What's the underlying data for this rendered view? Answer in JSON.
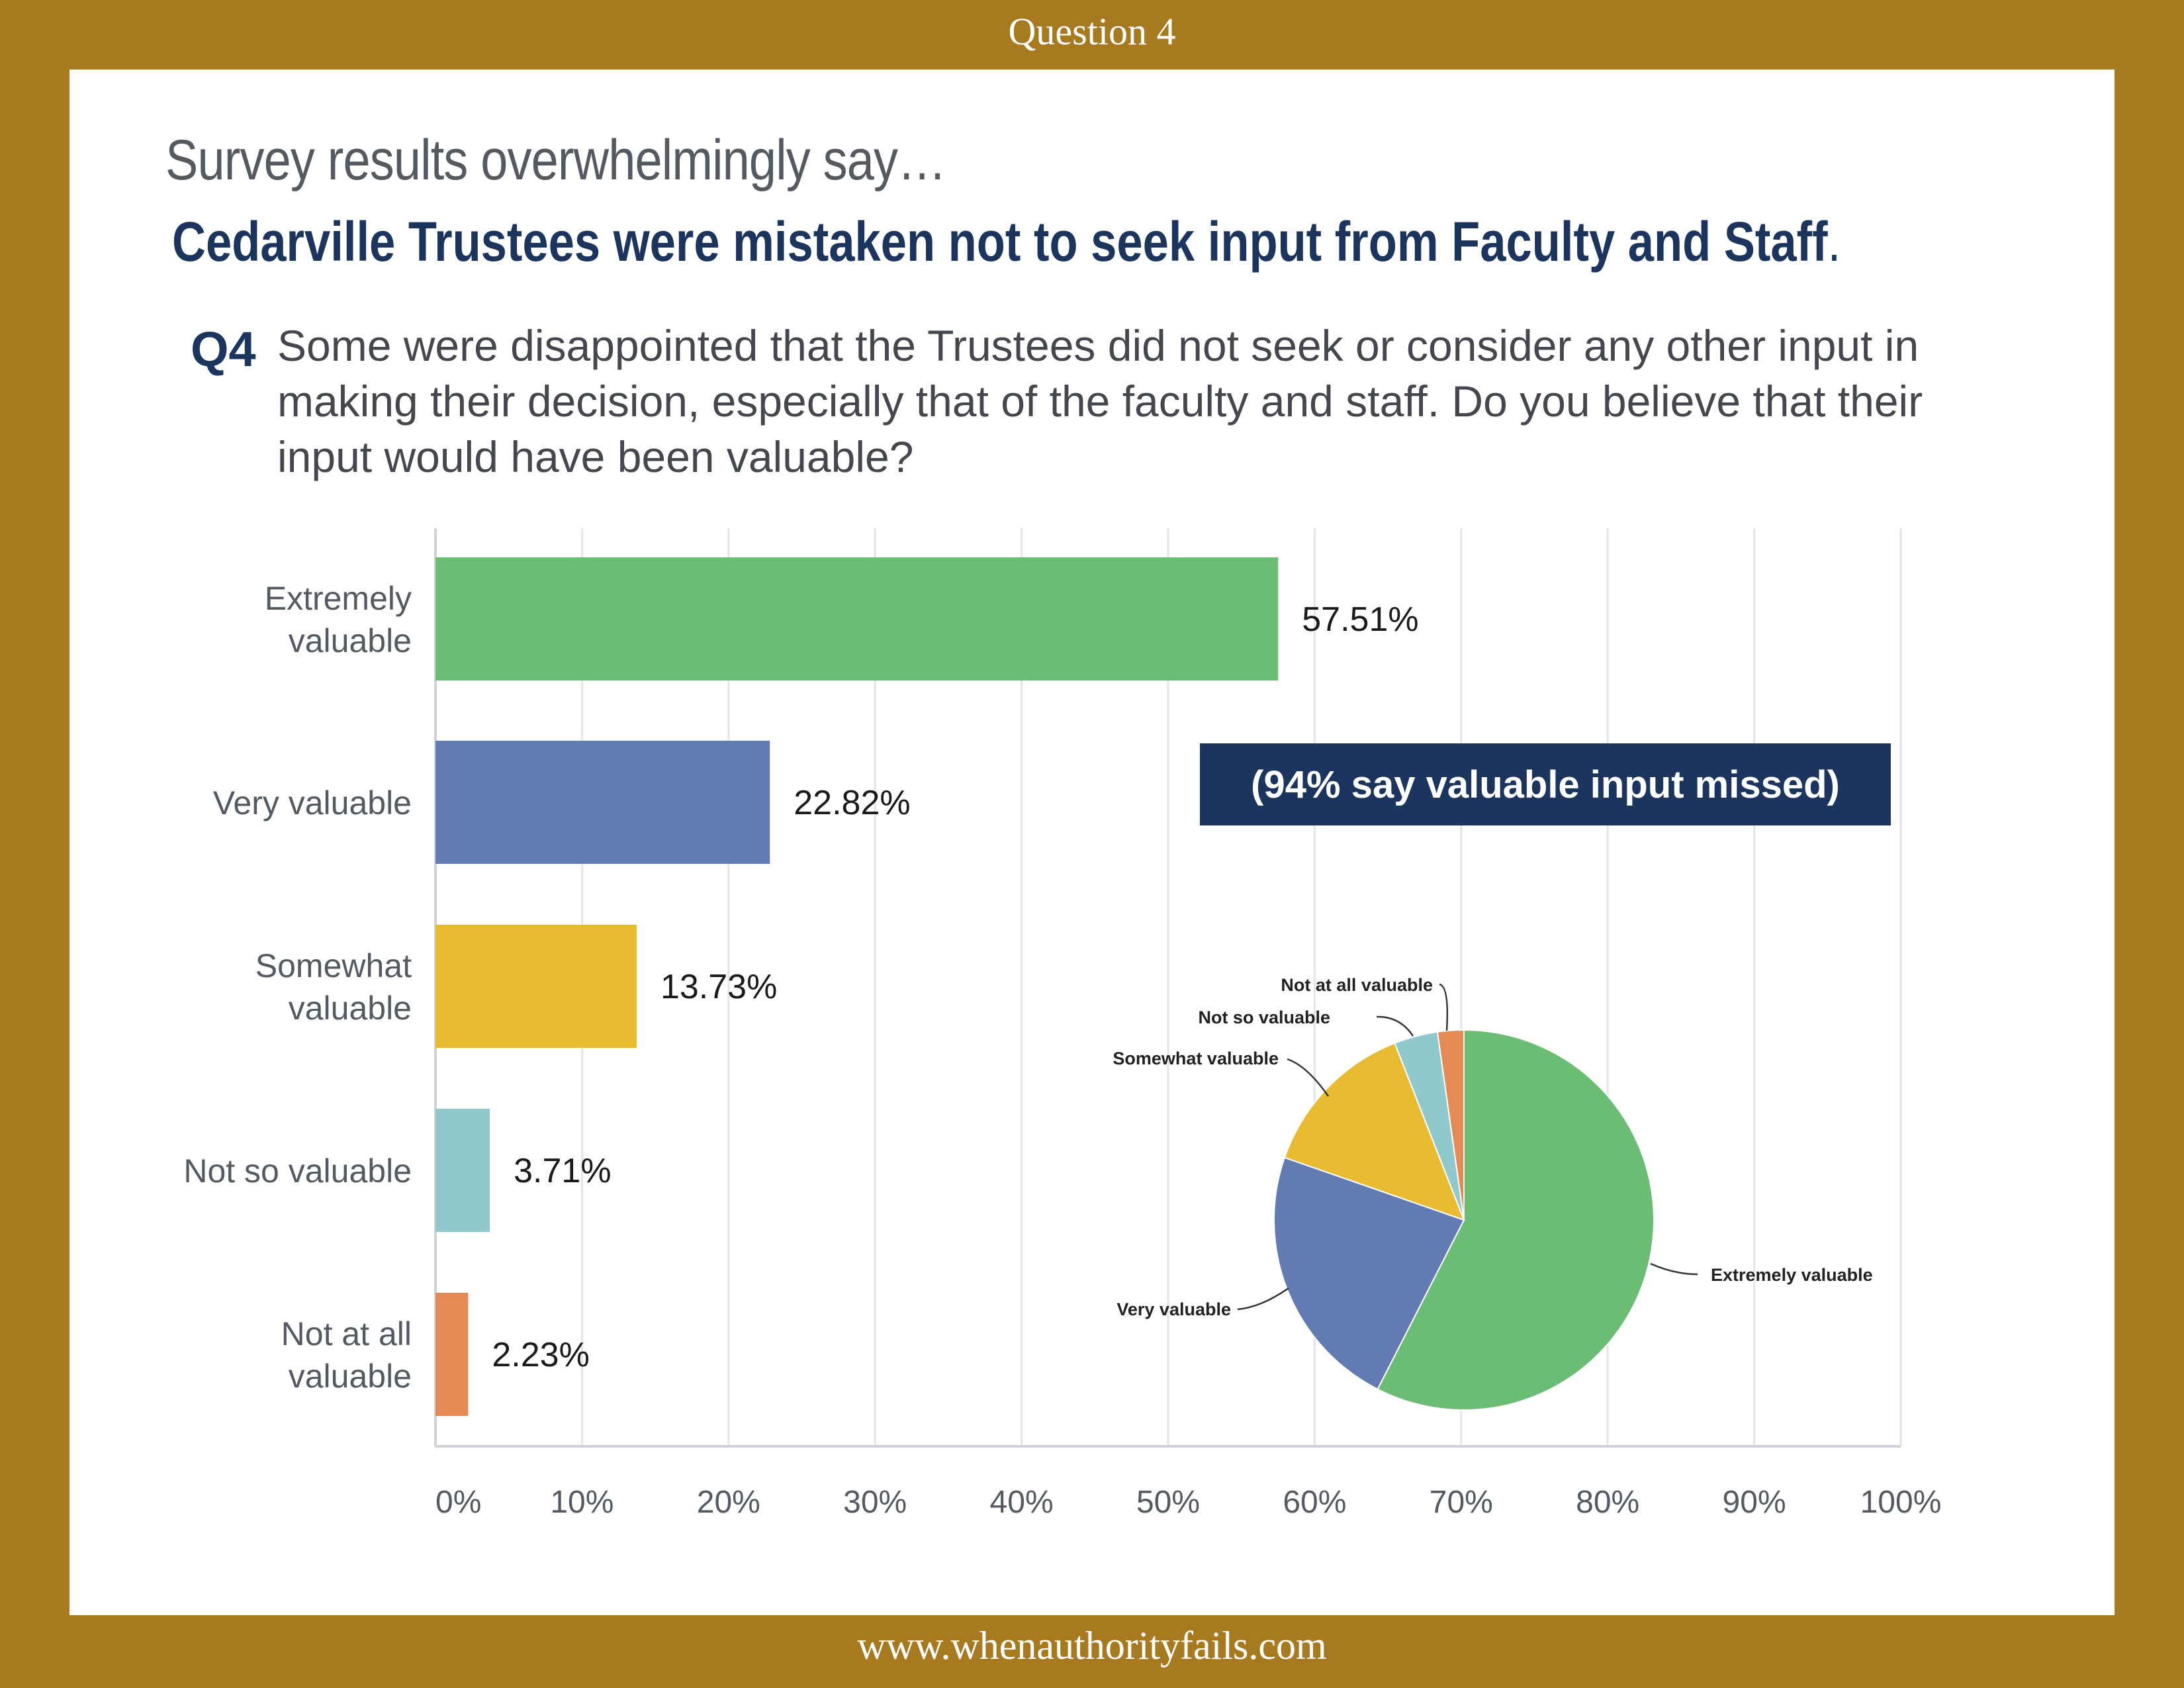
{
  "header": {
    "label": "Question 4"
  },
  "footer": {
    "url": "www.whenauthorityfails.com"
  },
  "intro": "Survey results overwhelmingly say…",
  "headline": {
    "text": "Cedarville Trustees were mistaken not to seek input from Faculty and Staff",
    "punct": "."
  },
  "question": {
    "number": "Q4",
    "text": "Some were disappointed that the Trustees did not seek or consider any other input in making their decision, especially that of the faculty and staff. Do you believe that their input would have been valuable?"
  },
  "callout": "(94% say valuable input missed)",
  "chart_data": [
    {
      "type": "bar",
      "orientation": "horizontal",
      "categories": [
        [
          "Extremely",
          "valuable"
        ],
        [
          "Very valuable"
        ],
        [
          "Somewhat",
          "valuable"
        ],
        [
          "Not so valuable"
        ],
        [
          "Not at all",
          "valuable"
        ]
      ],
      "values": [
        57.51,
        22.82,
        13.73,
        3.71,
        2.23
      ],
      "value_labels": [
        "57.51%",
        "22.82%",
        "13.73%",
        "3.71%",
        "2.23%"
      ],
      "colors": [
        "#6cbd74",
        "#627cb3",
        "#e8bb30",
        "#8fc8cd",
        "#e68a55"
      ],
      "xlim": [
        0,
        100
      ],
      "ticks": [
        "0%",
        "10%",
        "20%",
        "30%",
        "40%",
        "50%",
        "60%",
        "70%",
        "80%",
        "90%",
        "100%"
      ],
      "grid": true
    },
    {
      "type": "pie",
      "labels": [
        "Extremely valuable",
        "Very valuable",
        "Somewhat valuable",
        "Not so valuable",
        "Not at all valuable"
      ],
      "values": [
        57.51,
        22.82,
        13.73,
        3.71,
        2.23
      ],
      "colors": [
        "#6cbd74",
        "#627cb3",
        "#e8bb30",
        "#8fc8cd",
        "#e68a55"
      ]
    }
  ]
}
